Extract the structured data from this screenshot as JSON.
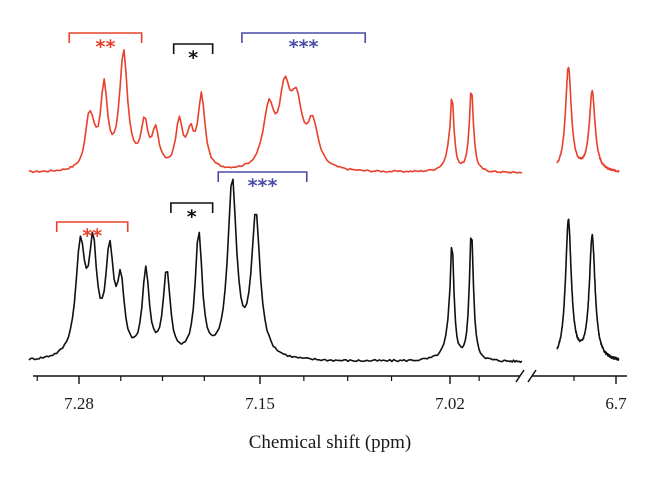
{
  "chart_data": {
    "type": "line",
    "title": "",
    "xlabel": "Chemical shift (ppm)",
    "ylabel": "",
    "x_reversed": true,
    "axis_break": {
      "between": [
        6.97,
        6.77
      ]
    },
    "xticks": [
      {
        "value": 7.28,
        "label": "7.28"
      },
      {
        "value": 7.15,
        "label": "7.15"
      },
      {
        "value": 7.02,
        "label": "7.02"
      },
      {
        "value": 6.7,
        "label": "6.7"
      }
    ],
    "colors": {
      "top": "#e8402a",
      "bottom": "#111111",
      "red_group": "#e8402a",
      "black_group": "#111111",
      "blue_group": "#4a4aa8"
    },
    "series": [
      {
        "key": "top",
        "peaks": [
          [
            7.273,
            0.3
          ],
          [
            7.27,
            0.14
          ],
          [
            7.262,
            0.55
          ],
          [
            7.248,
            0.8
          ],
          [
            7.233,
            0.3
          ],
          [
            7.225,
            0.25
          ],
          [
            7.208,
            0.32
          ],
          [
            7.2,
            0.22
          ],
          [
            7.192,
            0.5
          ],
          [
            7.144,
            0.4
          ],
          [
            7.133,
            0.5
          ],
          [
            7.125,
            0.4
          ],
          [
            7.114,
            0.3
          ],
          [
            7.018,
            0.52
          ],
          [
            6.998,
            0.58
          ],
          [
            6.734,
            0.72
          ],
          [
            6.717,
            0.55
          ]
        ],
        "widths": [
          0.003,
          0.003,
          0.003,
          0.0035,
          0.003,
          0.003,
          0.003,
          0.003,
          0.003,
          0.0045,
          0.0045,
          0.0045,
          0.0045,
          0.0025,
          0.0025,
          0.0025,
          0.0025
        ],
        "noise": 0.012,
        "segments": [
          [
            7.316,
            6.946
          ],
          [
            6.742,
            6.698
          ]
        ]
      },
      {
        "key": "bottom",
        "peaks": [
          [
            7.279,
            0.48
          ],
          [
            7.27,
            0.45
          ],
          [
            7.258,
            0.44
          ],
          [
            7.25,
            0.3
          ],
          [
            7.232,
            0.38
          ],
          [
            7.217,
            0.38
          ],
          [
            7.194,
            0.55
          ],
          [
            7.17,
            0.78
          ],
          [
            7.153,
            0.63
          ],
          [
            7.018,
            0.52
          ],
          [
            6.998,
            0.58
          ],
          [
            6.734,
            0.62
          ],
          [
            6.717,
            0.55
          ]
        ],
        "widths": [
          0.004,
          0.0035,
          0.0035,
          0.003,
          0.003,
          0.003,
          0.003,
          0.0038,
          0.0038,
          0.0025,
          0.0025,
          0.0025,
          0.0025
        ],
        "noise": 0.01,
        "segments": [
          [
            7.316,
            6.946
          ],
          [
            6.742,
            6.698
          ]
        ]
      }
    ],
    "group_markers": [
      {
        "series": "top",
        "group": "red_group",
        "label": "**",
        "from": 7.287,
        "to": 7.235
      },
      {
        "series": "top",
        "group": "black_group",
        "label": "*",
        "from": 7.212,
        "to": 7.184
      },
      {
        "series": "top",
        "group": "blue_group",
        "label": "***",
        "from": 7.163,
        "to": 7.078
      },
      {
        "series": "bottom",
        "group": "red_group",
        "label": "**",
        "from": 7.296,
        "to": 7.245
      },
      {
        "series": "bottom",
        "group": "black_group",
        "label": "*",
        "from": 7.214,
        "to": 7.184
      },
      {
        "series": "bottom",
        "group": "blue_group",
        "label": "***",
        "from": 7.18,
        "to": 7.118
      }
    ]
  }
}
